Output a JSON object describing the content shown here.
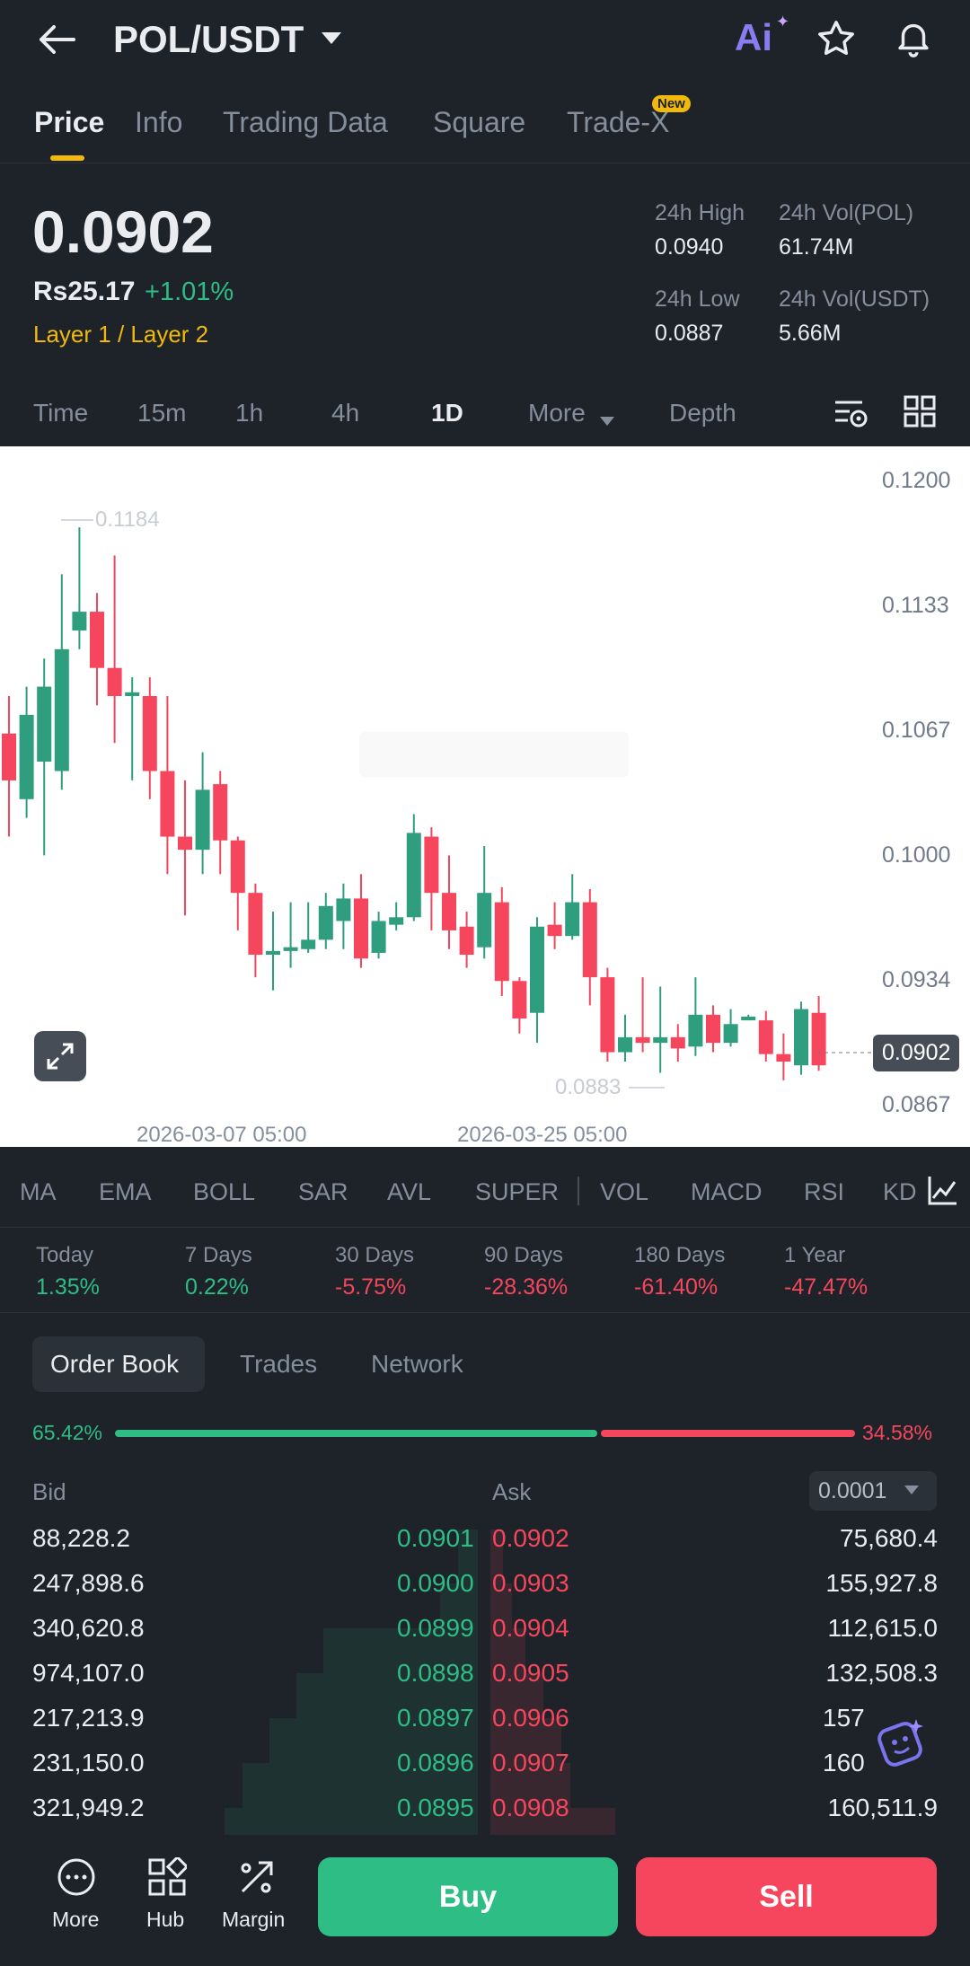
{
  "header": {
    "pair": "POL/USDT",
    "ai_label": "Ai",
    "tabs": [
      {
        "label": "Price"
      },
      {
        "label": "Info"
      },
      {
        "label": "Trading Data"
      },
      {
        "label": "Square"
      },
      {
        "label": "Trade-X"
      }
    ],
    "new_badge": "New"
  },
  "price": {
    "last": "0.0902",
    "fiat": "Rs25.17",
    "change": "+1.01%",
    "tags": "Layer 1 / Layer 2",
    "high_label": "24h High",
    "high": "0.0940",
    "vol_pol_label": "24h Vol(POL)",
    "vol_pol": "61.74M",
    "low_label": "24h Low",
    "low": "0.0887",
    "vol_usdt_label": "24h Vol(USDT)",
    "vol_usdt": "5.66M"
  },
  "intervals": [
    "Time",
    "15m",
    "1h",
    "4h",
    "1D",
    "More",
    "Depth"
  ],
  "chart": {
    "y_ticks": [
      "0.1200",
      "0.1133",
      "0.1067",
      "0.1000",
      "0.0934",
      "0.0867"
    ],
    "x_ticks": [
      "2026-03-07 05:00",
      "2026-03-25 05:00"
    ],
    "max_label": "0.1184",
    "min_label": "0.0883",
    "current": "0.0902",
    "colors": {
      "up": "#2e9e7e",
      "down": "#f6465d"
    }
  },
  "indicators": [
    "MA",
    "EMA",
    "BOLL",
    "SAR",
    "AVL",
    "SUPER",
    "VOL",
    "MACD",
    "RSI",
    "KD"
  ],
  "periods": [
    {
      "label": "Today",
      "value": "1.35%",
      "dir": "up"
    },
    {
      "label": "7 Days",
      "value": "0.22%",
      "dir": "up"
    },
    {
      "label": "30 Days",
      "value": "-5.75%",
      "dir": "down"
    },
    {
      "label": "90 Days",
      "value": "-28.36%",
      "dir": "down"
    },
    {
      "label": "180 Days",
      "value": "-61.40%",
      "dir": "down"
    },
    {
      "label": "1 Year",
      "value": "-47.47%",
      "dir": "down"
    }
  ],
  "orderbook": {
    "tabs": [
      "Order Book",
      "Trades",
      "Network"
    ],
    "bid_pct": "65.42%",
    "ask_pct": "34.58%",
    "bid_label": "Bid",
    "ask_label": "Ask",
    "precision": "0.0001",
    "rows": [
      {
        "bid_qty": "88,228.2",
        "bid": "0.0901",
        "ask": "0.0902",
        "ask_qty": "75,680.4"
      },
      {
        "bid_qty": "247,898.6",
        "bid": "0.0900",
        "ask": "0.0903",
        "ask_qty": "155,927.8"
      },
      {
        "bid_qty": "340,620.8",
        "bid": "0.0899",
        "ask": "0.0904",
        "ask_qty": "112,615.0"
      },
      {
        "bid_qty": "974,107.0",
        "bid": "0.0898",
        "ask": "0.0905",
        "ask_qty": "132,508.3"
      },
      {
        "bid_qty": "217,213.9",
        "bid": "0.0897",
        "ask": "0.0906",
        "ask_qty": "157"
      },
      {
        "bid_qty": "231,150.0",
        "bid": "0.0896",
        "ask": "0.0907",
        "ask_qty": "160"
      },
      {
        "bid_qty": "321,949.2",
        "bid": "0.0895",
        "ask": "0.0908",
        "ask_qty": "160,511.9"
      }
    ]
  },
  "bottom": {
    "more": "More",
    "hub": "Hub",
    "margin": "Margin",
    "buy": "Buy",
    "sell": "Sell"
  }
}
